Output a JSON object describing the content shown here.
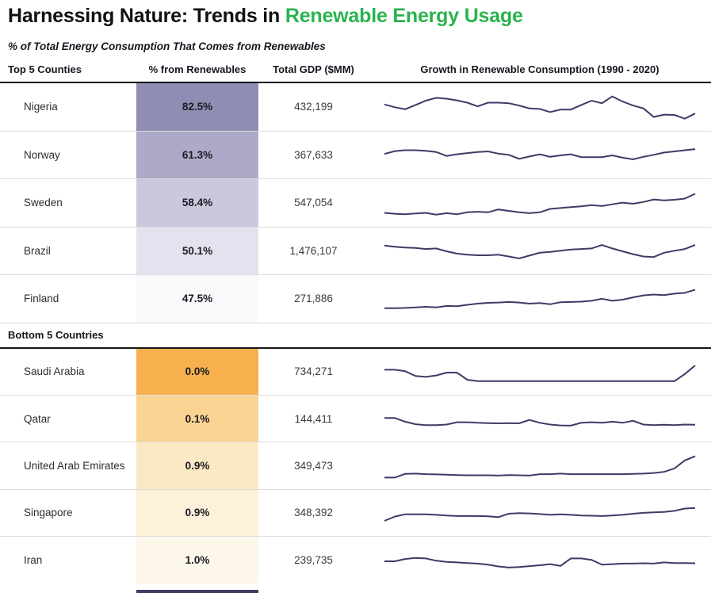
{
  "title": {
    "prefix": "Harnessing Nature: Trends in ",
    "highlight": "Renewable Energy Usage"
  },
  "subtitle": "% of Total Energy Consumption That Comes from Renewables",
  "header": {
    "top_section_label": "Top 5 Counties",
    "bottom_section_label": "Bottom 5 Countries",
    "pct_col": "% from Renewables",
    "gdp_col": "Total GDP ($MM)",
    "growth_col": "Growth in Renewable Consumption (1990 - 2020)"
  },
  "colors": {
    "title_highlight": "#2ab34f",
    "sparkline": "#3e3b66",
    "row_divider": "#dcdcdf",
    "section_border": "#161616"
  },
  "chart_data": {
    "type": "table",
    "title": "Harnessing Nature: Trends in Renewable Energy Usage",
    "subtitle": "% of Total Energy Consumption That Comes from Renewables",
    "sparkline_x_range": [
      1990,
      2020
    ],
    "sparkline_type": "line",
    "sections": [
      {
        "label": "Top 5 Counties",
        "rows": [
          {
            "country": "Nigeria",
            "pct": "82.5%",
            "gdp": "432,199",
            "cell_color": "#908db4",
            "spark": [
              62,
              52,
              45,
              60,
              75,
              85,
              82,
              76,
              68,
              55,
              68,
              68,
              66,
              58,
              48,
              46,
              35,
              44,
              44,
              60,
              75,
              66,
              90,
              72,
              58,
              48,
              18,
              26,
              25,
              12,
              30
            ]
          },
          {
            "country": "Norway",
            "pct": "61.3%",
            "gdp": "367,633",
            "cell_color": "#acaac8",
            "spark": [
              55,
              65,
              68,
              68,
              66,
              62,
              48,
              54,
              58,
              62,
              64,
              56,
              52,
              38,
              46,
              54,
              45,
              50,
              54,
              44,
              44,
              44,
              50,
              42,
              36,
              45,
              52,
              60,
              64,
              68,
              72
            ]
          },
          {
            "country": "Sweden",
            "pct": "58.4%",
            "gdp": "547,054",
            "cell_color": "#c9c8dd",
            "spark": [
              18,
              15,
              13,
              16,
              18,
              12,
              17,
              13,
              20,
              22,
              20,
              30,
              25,
              20,
              17,
              20,
              32,
              35,
              38,
              41,
              45,
              42,
              48,
              54,
              50,
              56,
              65,
              62,
              64,
              68,
              85
            ]
          },
          {
            "country": "Brazil",
            "pct": "50.1%",
            "gdp": "1,476,107",
            "cell_color": "#e3e2ee",
            "spark": [
              70,
              66,
              63,
              62,
              58,
              60,
              50,
              42,
              38,
              36,
              36,
              38,
              32,
              25,
              35,
              45,
              48,
              52,
              56,
              58,
              60,
              72,
              60,
              50,
              40,
              32,
              30,
              45,
              52,
              58,
              72
            ]
          },
          {
            "country": "Finland",
            "pct": "47.5%",
            "gdp": "271,886",
            "cell_color": "#f9f9fc",
            "spark": [
              20,
              20,
              21,
              23,
              25,
              23,
              28,
              27,
              32,
              36,
              39,
              40,
              42,
              40,
              36,
              38,
              34,
              41,
              42,
              43,
              46,
              53,
              46,
              50,
              58,
              65,
              68,
              66,
              71,
              74,
              85
            ]
          }
        ]
      },
      {
        "label": "Bottom 5 Countries",
        "rows": [
          {
            "country": "Saudi Arabia",
            "pct": "0.0%",
            "gdp": "734,271",
            "cell_color": "#f6b04e",
            "spark": [
              60,
              60,
              55,
              38,
              35,
              40,
              50,
              50,
              25,
              20,
              20,
              20,
              20,
              20,
              20,
              20,
              20,
              20,
              20,
              20,
              20,
              20,
              20,
              20,
              20,
              20,
              20,
              20,
              20,
              45,
              75
            ]
          },
          {
            "country": "Qatar",
            "pct": "0.1%",
            "gdp": "144,411",
            "cell_color": "#f9d492",
            "spark": [
              55,
              55,
              42,
              33,
              30,
              30,
              32,
              40,
              40,
              38,
              37,
              36,
              37,
              36,
              48,
              38,
              32,
              29,
              28,
              38,
              40,
              38,
              42,
              38,
              45,
              32,
              30,
              31,
              30,
              32,
              31
            ]
          },
          {
            "country": "United Arab Emirates",
            "pct": "0.9%",
            "gdp": "349,473",
            "cell_color": "#fbe8c4",
            "spark": [
              10,
              10,
              23,
              24,
              22,
              21,
              20,
              19,
              18,
              18,
              18,
              17,
              19,
              18,
              17,
              22,
              22,
              24,
              22,
              22,
              22,
              22,
              22,
              22,
              23,
              24,
              26,
              30,
              42,
              70,
              85
            ]
          },
          {
            "country": "Singapore",
            "pct": "0.9%",
            "gdp": "348,392",
            "cell_color": "#fdf1da",
            "spark": [
              25,
              40,
              48,
              48,
              48,
              46,
              44,
              42,
              42,
              42,
              41,
              38,
              50,
              52,
              51,
              49,
              46,
              48,
              46,
              44,
              43,
              42,
              44,
              46,
              50,
              53,
              55,
              56,
              60,
              68,
              70
            ]
          },
          {
            "country": "Iran",
            "pct": "1.0%",
            "gdp": "239,735",
            "cell_color": "#fdf7ea",
            "spark": [
              50,
              50,
              58,
              62,
              60,
              52,
              48,
              46,
              44,
              42,
              38,
              32,
              28,
              30,
              33,
              36,
              40,
              34,
              60,
              60,
              55,
              38,
              40,
              42,
              42,
              43,
              42,
              46,
              44,
              44,
              43
            ]
          }
        ]
      }
    ]
  }
}
